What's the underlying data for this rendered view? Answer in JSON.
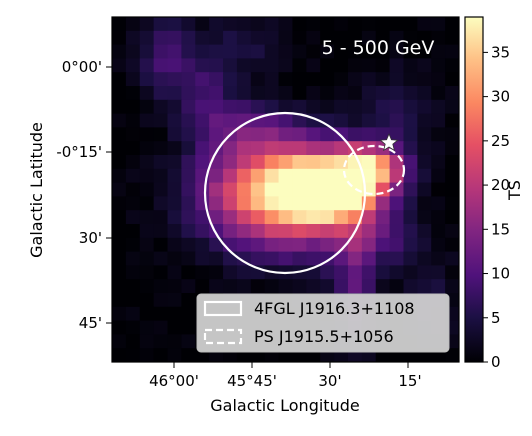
{
  "chart_data": {
    "type": "heatmap",
    "title": "5 - 500 GeV",
    "xlabel": "Galactic Longitude",
    "ylabel": "Galactic Latitude",
    "x_ticks": [
      "46°00'",
      "45°45'",
      "30'",
      "15'"
    ],
    "y_ticks": [
      "0°00'",
      "-0°15'",
      "30'",
      "45'"
    ],
    "colorbar": {
      "label": "TS",
      "ticks": [
        "0",
        "5",
        "10",
        "15",
        "20",
        "25",
        "30",
        "35"
      ],
      "range": [
        0,
        39
      ],
      "colormap": "magma"
    },
    "peak_ts": 39,
    "legend": {
      "placement": "bottom-right",
      "entries": [
        {
          "label": "4FGL J1916.3+1108",
          "style": "solid"
        },
        {
          "label": "PS J1915.5+1056",
          "style": "dashed"
        }
      ]
    },
    "markers": [
      {
        "symbol": "star",
        "color": "#ffffff"
      }
    ]
  }
}
